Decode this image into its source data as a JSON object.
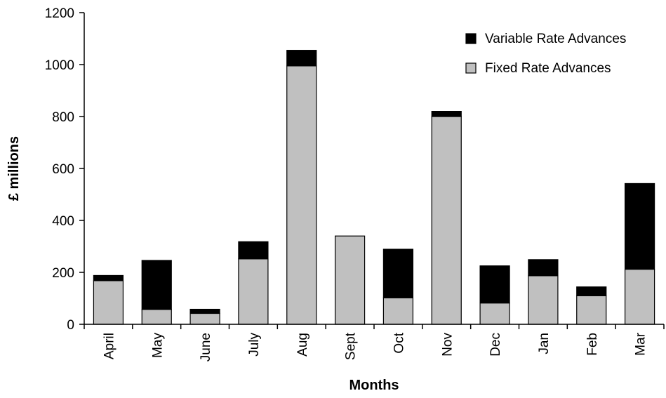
{
  "chart_data": {
    "type": "bar",
    "stacked": true,
    "categories": [
      "April",
      "May",
      "June",
      "July",
      "Aug",
      "Sept",
      "Oct",
      "Nov",
      "Dec",
      "Jan",
      "Feb",
      "Mar"
    ],
    "series": [
      {
        "name": "Fixed Rate Advances",
        "color": "#c0c0c0",
        "values": [
          168,
          57,
          42,
          252,
          995,
          340,
          102,
          800,
          82,
          187,
          110,
          212
        ]
      },
      {
        "name": "Variable Rate Advances",
        "color": "#000000",
        "values": [
          20,
          189,
          16,
          66,
          60,
          0,
          187,
          20,
          143,
          62,
          34,
          330
        ]
      }
    ],
    "title": "",
    "xlabel": "Months",
    "ylabel": "£ millions",
    "ylim": [
      0,
      1200
    ],
    "yticks": [
      0,
      200,
      400,
      600,
      800,
      1000,
      1200
    ],
    "grid": false,
    "legend_position": "top-right",
    "legend_order": [
      "Variable Rate Advances",
      "Fixed Rate Advances"
    ]
  }
}
